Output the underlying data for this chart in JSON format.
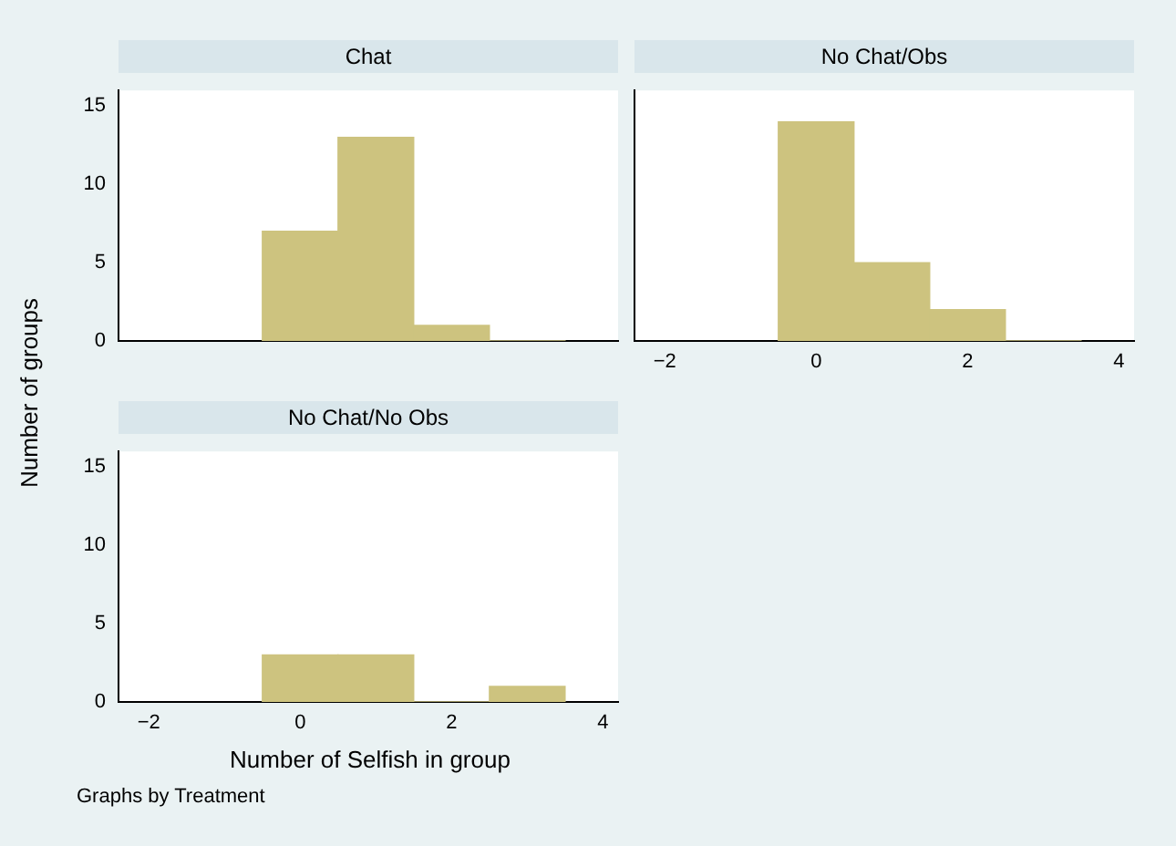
{
  "chart_data": [
    {
      "type": "histogram",
      "title": "Chat",
      "ylabel": "Number of groups",
      "bins": [
        -0.5,
        0.5,
        1.5,
        2.5,
        3.5
      ],
      "values": [
        7,
        13,
        1,
        0
      ],
      "color": "#cdc37f",
      "xlim": [
        -2.4,
        4.2
      ],
      "xticks": [
        -2,
        0,
        2,
        4
      ],
      "ylim": [
        0,
        16
      ],
      "yticks": [
        0,
        5,
        10,
        15
      ],
      "tick_labels": "y",
      "grid": false,
      "legend": false
    },
    {
      "type": "histogram",
      "title": "No Chat/Obs",
      "bins": [
        -0.5,
        0.5,
        1.5,
        2.5,
        3.5
      ],
      "values": [
        14,
        5,
        2,
        0
      ],
      "color": "#cdc37f",
      "xlim": [
        -2.4,
        4.2
      ],
      "xticks": [
        -2,
        0,
        2,
        4
      ],
      "ylim": [
        0,
        16
      ],
      "yticks": [
        0,
        5,
        10,
        15
      ],
      "tick_labels": "x",
      "grid": false,
      "legend": false
    },
    {
      "type": "histogram",
      "title": "No Chat/No Obs",
      "xlabel": "Number of Selfish in group",
      "annotations": [
        "Graphs by Treatment"
      ],
      "bins": [
        -0.5,
        0.5,
        1.5,
        2.5,
        3.5
      ],
      "values": [
        3,
        3,
        0,
        1
      ],
      "color": "#cdc37f",
      "xlim": [
        -2.4,
        4.2
      ],
      "xticks": [
        -2,
        0,
        2,
        4
      ],
      "ylim": [
        0,
        16
      ],
      "yticks": [
        0,
        5,
        10,
        15
      ],
      "grid": false,
      "legend": false
    }
  ]
}
